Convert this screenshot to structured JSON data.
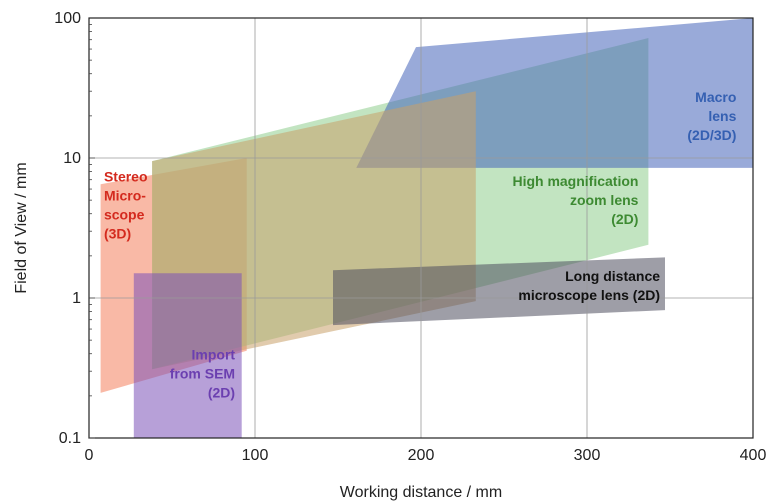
{
  "chart_data": {
    "type": "area",
    "title": "",
    "xlabel": "Working distance / mm",
    "ylabel": "Field of View / mm",
    "xlim": [
      0,
      400
    ],
    "ylim": [
      0.1,
      100
    ],
    "yscale": "log",
    "grid": true,
    "xticks": [
      {
        "value": 0,
        "label": "0"
      },
      {
        "value": 100,
        "label": "100"
      },
      {
        "value": 200,
        "label": "200"
      },
      {
        "value": 300,
        "label": "300"
      },
      {
        "value": 400,
        "label": "400"
      }
    ],
    "yticks": [
      {
        "value": 0.1,
        "label": "0.1"
      },
      {
        "value": 1,
        "label": "1"
      },
      {
        "value": 10,
        "label": "10"
      },
      {
        "value": 100,
        "label": "100"
      }
    ],
    "regions": [
      {
        "id": "stereo",
        "label": [
          "Stereo",
          "Micro-",
          "scope",
          "(3D)"
        ],
        "color": "#f4805c",
        "label_color": "#d42a1e",
        "label_anchor": "start",
        "label_pos": [
          9,
          4.6
        ],
        "polygon": [
          [
            7,
            6.5
          ],
          [
            95,
            10
          ],
          [
            95,
            0.42
          ],
          [
            7,
            0.21
          ]
        ]
      },
      {
        "id": "zoom",
        "label": [
          "High magnification",
          "zoom lens",
          "(2D)"
        ],
        "color": "#8fce8e",
        "label_color": "#3d8a32",
        "label_anchor": "end",
        "label_pos": [
          331,
          5.0
        ],
        "polygon": [
          [
            38,
            9.5
          ],
          [
            337,
            72
          ],
          [
            337,
            2.4
          ],
          [
            38,
            0.31
          ]
        ]
      },
      {
        "id": "macro",
        "label": [
          "Macro",
          "lens",
          "(2D/3D)"
        ],
        "color": "#4665b9",
        "label_color": "#3560b2",
        "label_anchor": "end",
        "label_pos": [
          390,
          20
        ],
        "polygon": [
          [
            197,
            62
          ],
          [
            400,
            100
          ],
          [
            400,
            8.5
          ],
          [
            161,
            8.5
          ]
        ]
      },
      {
        "id": "stereo-zoom",
        "label": [],
        "color": "#c8a06a",
        "label_color": "#000000",
        "label_anchor": "start",
        "label_pos": [
          0,
          0
        ],
        "polygon": [
          [
            38,
            9.5
          ],
          [
            233,
            30
          ],
          [
            233,
            0.95
          ],
          [
            38,
            0.31
          ]
        ]
      },
      {
        "id": "sem",
        "label": [
          "Import",
          "from SEM",
          "(2D)"
        ],
        "color": "#7b52b8",
        "label_color": "#6b3fb0",
        "label_anchor": "end",
        "label_pos": [
          88,
          0.29
        ],
        "polygon": [
          [
            27,
            1.5
          ],
          [
            92,
            1.5
          ],
          [
            92,
            0.1
          ],
          [
            27,
            0.1
          ]
        ]
      },
      {
        "id": "long-distance",
        "label": [
          "Long distance",
          "microscope lens (2D)"
        ],
        "color": "#4f4f5e",
        "label_color": "#111111",
        "label_anchor": "end",
        "label_pos": [
          344,
          1.23
        ],
        "polygon": [
          [
            147,
            1.58
          ],
          [
            347,
            1.95
          ],
          [
            347,
            0.82
          ],
          [
            147,
            0.64
          ]
        ]
      }
    ]
  }
}
